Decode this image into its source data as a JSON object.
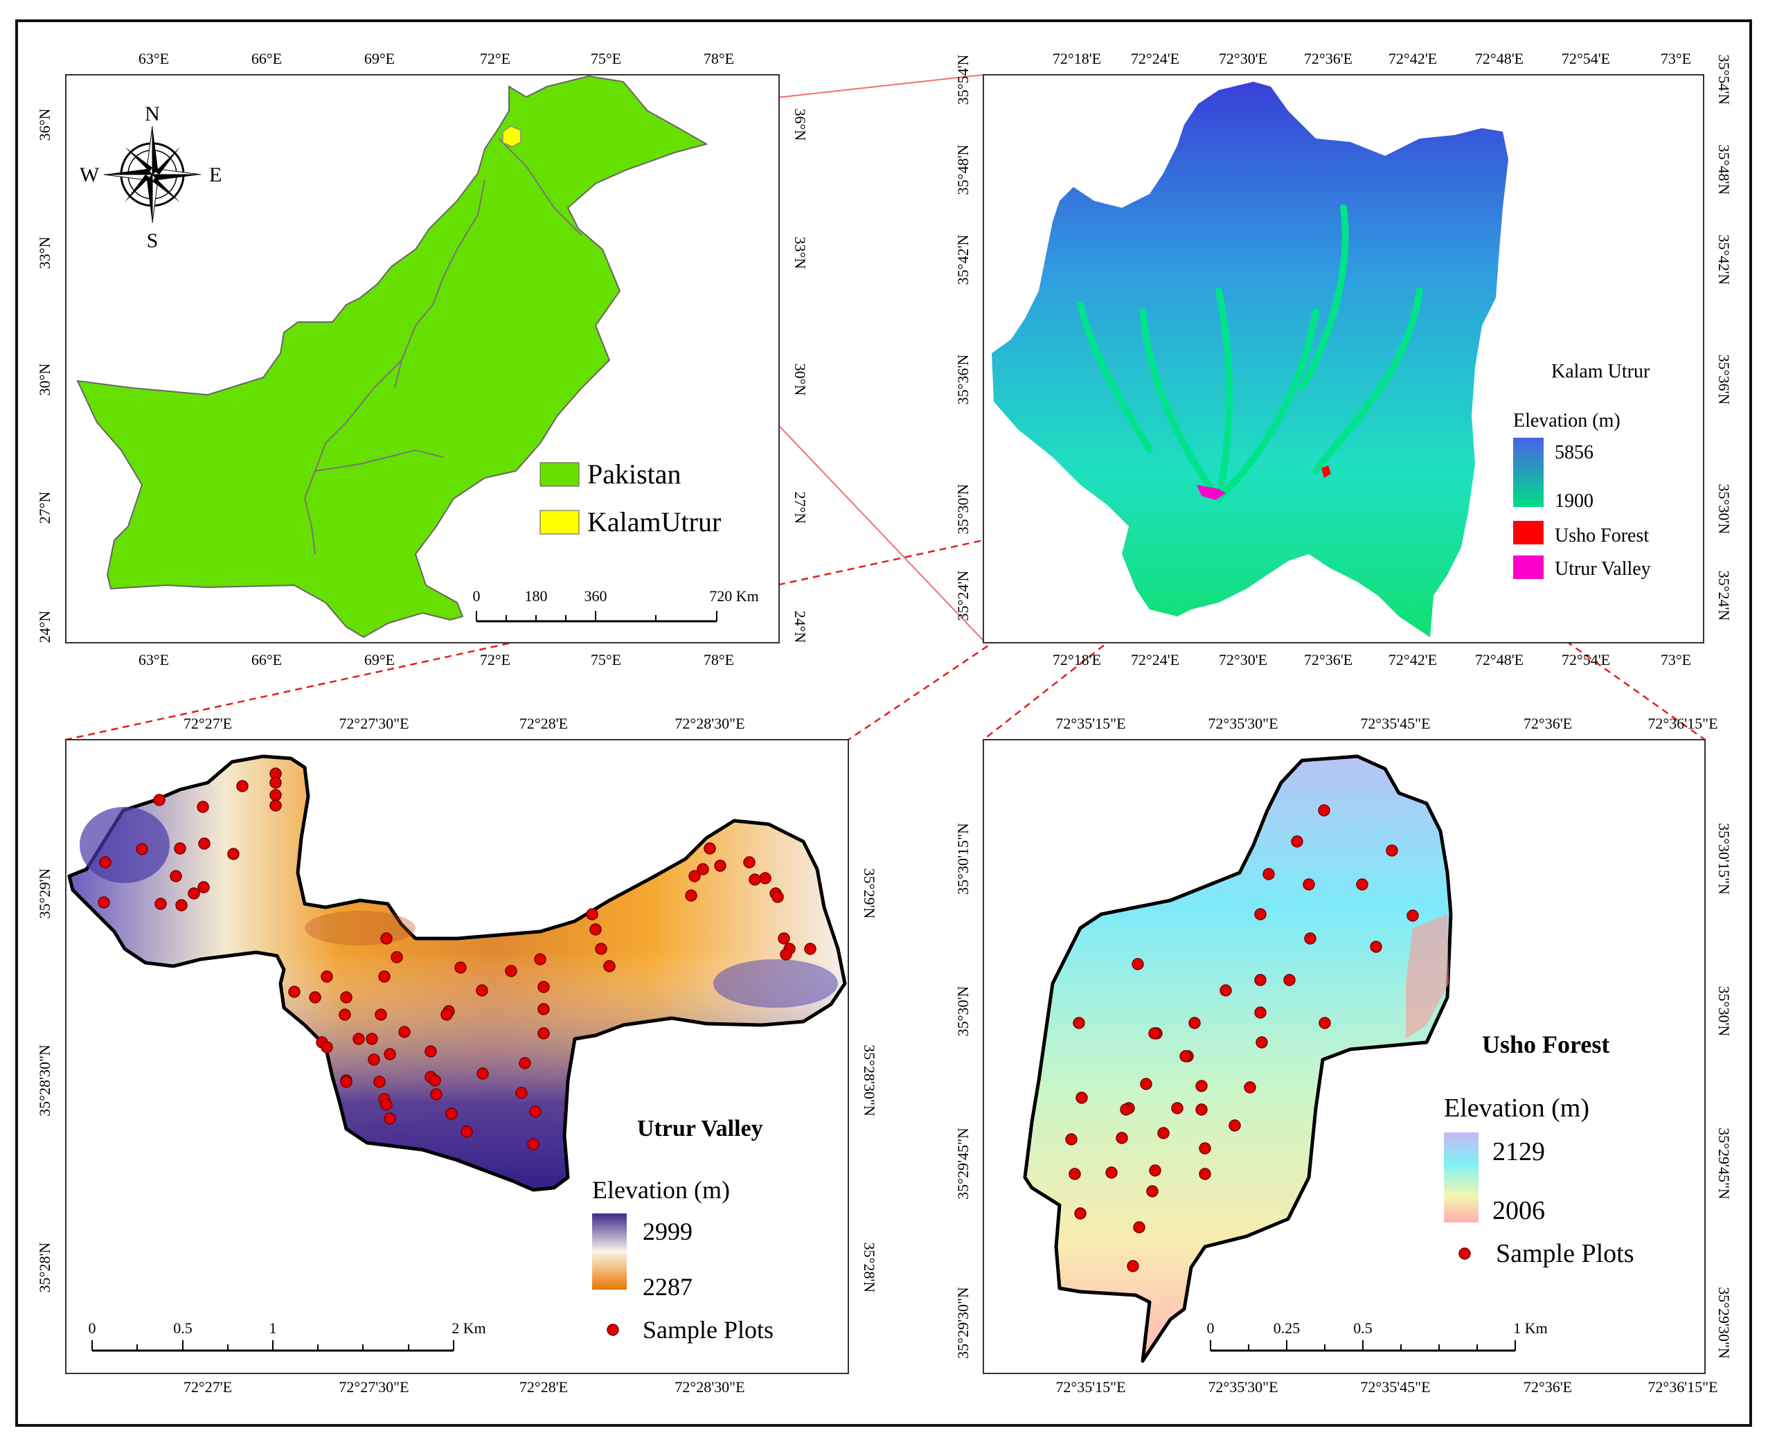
{
  "panels": {
    "pakistan": {
      "top_ticks_x": [
        "63°E",
        "66°E",
        "69°E",
        "72°E",
        "75°E",
        "78°E"
      ],
      "left_ticks_y": [
        "36°N",
        "33°N",
        "30°N",
        "27°N",
        "24°N"
      ],
      "legend": [
        {
          "label": "Pakistan",
          "color": "#66e000"
        },
        {
          "label": "KalamUtrur",
          "color": "#ffff00"
        }
      ],
      "scale": {
        "ticks": [
          "0",
          "180",
          "360",
          "720 Km"
        ]
      },
      "compass": {
        "n": "N",
        "s": "S",
        "e": "E",
        "w": "W",
        "icon": "compass-rose-icon"
      }
    },
    "kalam": {
      "x_ticks": [
        "72°18'E",
        "72°24'E",
        "72°30'E",
        "72°36'E",
        "72°42'E",
        "72°48'E",
        "72°54'E",
        "73°E"
      ],
      "y_ticks": [
        "35°54'N",
        "35°48'N",
        "35°42'N",
        "35°36'N",
        "35°30'N",
        "35°24'N"
      ],
      "legend_title": "Kalam Utrur",
      "elevation_label": "Elevation (m)",
      "elev_high": "5856",
      "elev_low": "1900",
      "items": [
        {
          "label": "Usho Forest",
          "color": "#ff0000"
        },
        {
          "label": "Utrur Valley",
          "color": "#ff00cc"
        }
      ]
    },
    "utrur": {
      "x_ticks": [
        "72°27'E",
        "72°27'30\"E",
        "72°28'E",
        "72°28'30\"E"
      ],
      "y_ticks": [
        "35°29'N",
        "35°28'30\"N",
        "35°28'N"
      ],
      "title": "Utrur Valley",
      "elevation_label": "Elevation (m)",
      "elev_high": "2999",
      "elev_low": "2287",
      "sample_label": "Sample Plots",
      "scale": {
        "ticks": [
          "0",
          "0.5",
          "1",
          "2 Km"
        ]
      }
    },
    "usho": {
      "x_ticks": [
        "72°35'15\"E",
        "72°35'30\"E",
        "72°35'45\"E",
        "72°36'E",
        "72°36'15\"E"
      ],
      "y_ticks": [
        "35°30'15\"N",
        "35°30'N",
        "35°29'45\"N",
        "35°29'30\"N"
      ],
      "title": "Usho Forest",
      "elevation_label": "Elevation (m)",
      "elev_high": "2129",
      "elev_low": "2006",
      "sample_label": "Sample Plots",
      "scale": {
        "ticks": [
          "0",
          "0.25",
          "0.5",
          "1 Km"
        ]
      }
    }
  }
}
